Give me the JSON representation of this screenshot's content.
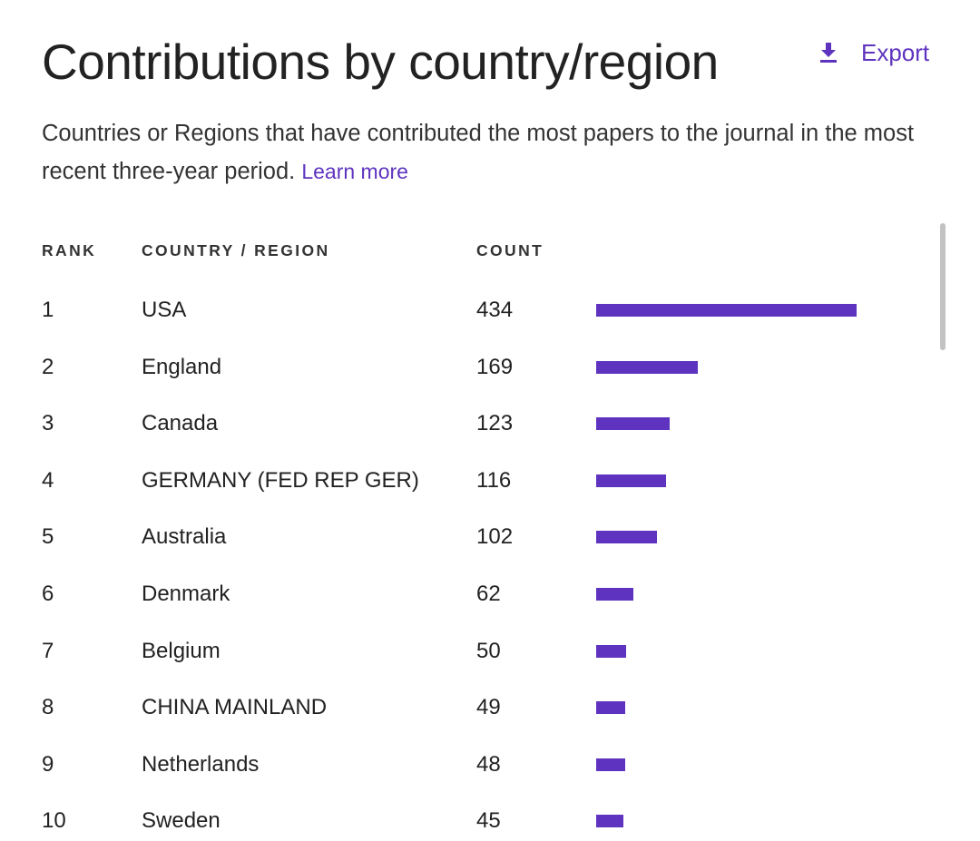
{
  "header": {
    "title": "Contributions by country/region",
    "export_label": "Export",
    "export_icon": "download-icon"
  },
  "description": {
    "text": "Countries or Regions that have contributed the most papers to the journal in the most recent three-year period.",
    "link_label": "Learn more"
  },
  "table": {
    "columns": [
      "RANK",
      "COUNTRY / REGION",
      "COUNT"
    ],
    "rows": [
      {
        "rank": "1",
        "country": "USA",
        "count": "434"
      },
      {
        "rank": "2",
        "country": "England",
        "count": "169"
      },
      {
        "rank": "3",
        "country": "Canada",
        "count": "123"
      },
      {
        "rank": "4",
        "country": "GERMANY (FED REP GER)",
        "count": "116"
      },
      {
        "rank": "5",
        "country": "Australia",
        "count": "102"
      },
      {
        "rank": "6",
        "country": "Denmark",
        "count": "62"
      },
      {
        "rank": "7",
        "country": "Belgium",
        "count": "50"
      },
      {
        "rank": "8",
        "country": "CHINA MAINLAND",
        "count": "49"
      },
      {
        "rank": "9",
        "country": "Netherlands",
        "count": "48"
      },
      {
        "rank": "10",
        "country": "Sweden",
        "count": "45"
      }
    ]
  },
  "chart_data": {
    "type": "bar",
    "orientation": "horizontal",
    "categories": [
      "USA",
      "England",
      "Canada",
      "GERMANY (FED REP GER)",
      "Australia",
      "Denmark",
      "Belgium",
      "CHINA MAINLAND",
      "Netherlands",
      "Sweden"
    ],
    "values": [
      434,
      169,
      123,
      116,
      102,
      62,
      50,
      49,
      48,
      45
    ],
    "grid": false
  },
  "colors": {
    "accent": "#5e33bf",
    "text": "#222222",
    "scrollbar": "#c2c2c2"
  }
}
